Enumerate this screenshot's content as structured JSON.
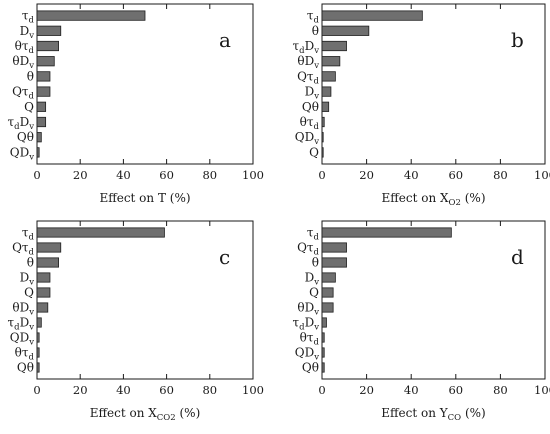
{
  "chart_data": [
    {
      "type": "bar",
      "orientation": "horizontal",
      "panel_label": "a",
      "xlabel": "Effect on T (%)",
      "xlim": [
        0,
        100
      ],
      "xticks": [
        0,
        20,
        40,
        60,
        80,
        100
      ],
      "categories": [
        "τd",
        "Dv",
        "θτd",
        "θDv",
        "θ",
        "Qτd",
        "Q",
        "τdDv",
        "Qθ",
        "QDv"
      ],
      "values": [
        50,
        11,
        10,
        8,
        6,
        6,
        4,
        4,
        2,
        1
      ]
    },
    {
      "type": "bar",
      "orientation": "horizontal",
      "panel_label": "b",
      "xlabel": "Effect on XO2 (%)",
      "xlim": [
        0,
        100
      ],
      "xticks": [
        0,
        20,
        40,
        60,
        80,
        100
      ],
      "categories": [
        "τd",
        "θ",
        "τdDv",
        "θDv",
        "Qτd",
        "Dv",
        "Qθ",
        "θτd",
        "QDv",
        "Q"
      ],
      "values": [
        45,
        21,
        11,
        8,
        6,
        4,
        3,
        1,
        0.5,
        0.5
      ]
    },
    {
      "type": "bar",
      "orientation": "horizontal",
      "panel_label": "c",
      "xlabel": "Effect on XCO2 (%)",
      "xlim": [
        0,
        100
      ],
      "xticks": [
        0,
        20,
        40,
        60,
        80,
        100
      ],
      "categories": [
        "τd",
        "Qτd",
        "θ",
        "Dv",
        "Q",
        "θDv",
        "τdDv",
        "QDv",
        "θτd",
        "Qθ"
      ],
      "values": [
        59,
        11,
        10,
        6,
        6,
        5,
        2,
        1,
        1,
        1
      ]
    },
    {
      "type": "bar",
      "orientation": "horizontal",
      "panel_label": "d",
      "xlabel": "Effect on YCO (%)",
      "xlim": [
        0,
        100
      ],
      "xticks": [
        0,
        20,
        40,
        60,
        80,
        100
      ],
      "categories": [
        "τd",
        "Qτd",
        "θ",
        "Dv",
        "Q",
        "θDv",
        "τdDv",
        "θτd",
        "QDv",
        "Qθ"
      ],
      "values": [
        58,
        11,
        11,
        6,
        5,
        5,
        2,
        1,
        1,
        1
      ]
    }
  ]
}
